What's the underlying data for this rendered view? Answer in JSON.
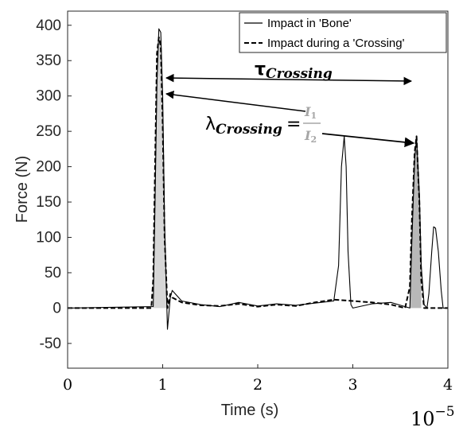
{
  "chart_data": {
    "type": "line",
    "title": "",
    "xlabel": "Time (s)",
    "ylabel": "Force (N)",
    "xlim": [
      0,
      4
    ],
    "ylim": [
      -85,
      420
    ],
    "x_multiplier": "10",
    "x_multiplier_exp": "−5",
    "x_ticks": [
      "0",
      "1",
      "2",
      "3",
      "4"
    ],
    "y_ticks": [
      "-50",
      "0",
      "50",
      "100",
      "150",
      "200",
      "250",
      "300",
      "350",
      "400"
    ],
    "grid": false,
    "legend_position": "top-right",
    "series": [
      {
        "name": "Impact in 'Bone'",
        "style": "solid",
        "color": "#000000",
        "x": [
          0,
          0.9,
          0.92,
          0.94,
          0.96,
          0.98,
          1.0,
          1.02,
          1.05,
          1.08,
          1.1,
          1.2,
          1.4,
          1.6,
          1.8,
          2.0,
          2.2,
          2.4,
          2.6,
          2.8,
          2.85,
          2.88,
          2.91,
          2.93,
          2.95,
          2.98,
          3.0,
          3.2,
          3.4,
          3.6,
          3.62,
          3.65,
          3.67,
          3.7,
          3.72,
          3.75,
          3.78,
          3.8,
          3.83,
          3.85,
          3.87,
          3.9,
          3.93,
          3.95,
          4.0
        ],
        "y": [
          0,
          2,
          150,
          320,
          395,
          390,
          300,
          120,
          -30,
          15,
          25,
          10,
          5,
          2,
          8,
          3,
          6,
          4,
          7,
          10,
          60,
          200,
          243,
          200,
          80,
          5,
          0,
          6,
          8,
          0,
          90,
          210,
          242,
          160,
          60,
          5,
          0,
          20,
          80,
          115,
          113,
          80,
          25,
          0,
          0
        ]
      },
      {
        "name": "Impact during a 'Crossing'",
        "style": "dashed",
        "color": "#000000",
        "x": [
          0,
          0.88,
          0.9,
          0.92,
          0.94,
          0.96,
          0.98,
          1.0,
          1.02,
          1.05,
          1.08,
          1.1,
          1.2,
          1.4,
          1.6,
          1.8,
          2.0,
          2.2,
          2.4,
          2.6,
          2.8,
          3.0,
          3.2,
          3.4,
          3.55,
          3.6,
          3.62,
          3.65,
          3.67,
          3.7,
          3.72,
          3.75,
          3.8,
          3.9,
          4.0
        ],
        "y": [
          0,
          0,
          40,
          200,
          360,
          383,
          370,
          260,
          100,
          0,
          20,
          15,
          8,
          4,
          3,
          6,
          2,
          5,
          3,
          8,
          12,
          10,
          8,
          5,
          0,
          30,
          120,
          220,
          243,
          150,
          40,
          0,
          0,
          0,
          0
        ]
      }
    ],
    "shaded_regions": [
      {
        "x_start": 0.9,
        "x_end": 1.05
      },
      {
        "x_start": 3.6,
        "x_end": 3.72
      }
    ],
    "annotations": {
      "tau_symbol": "τ",
      "tau_subscript": "Crossing",
      "lambda_symbol": "λ",
      "lambda_subscript": "Crossing",
      "equals": "=",
      "numerator": "I",
      "numerator_sub": "1",
      "denominator": "I",
      "denominator_sub": "2"
    }
  }
}
